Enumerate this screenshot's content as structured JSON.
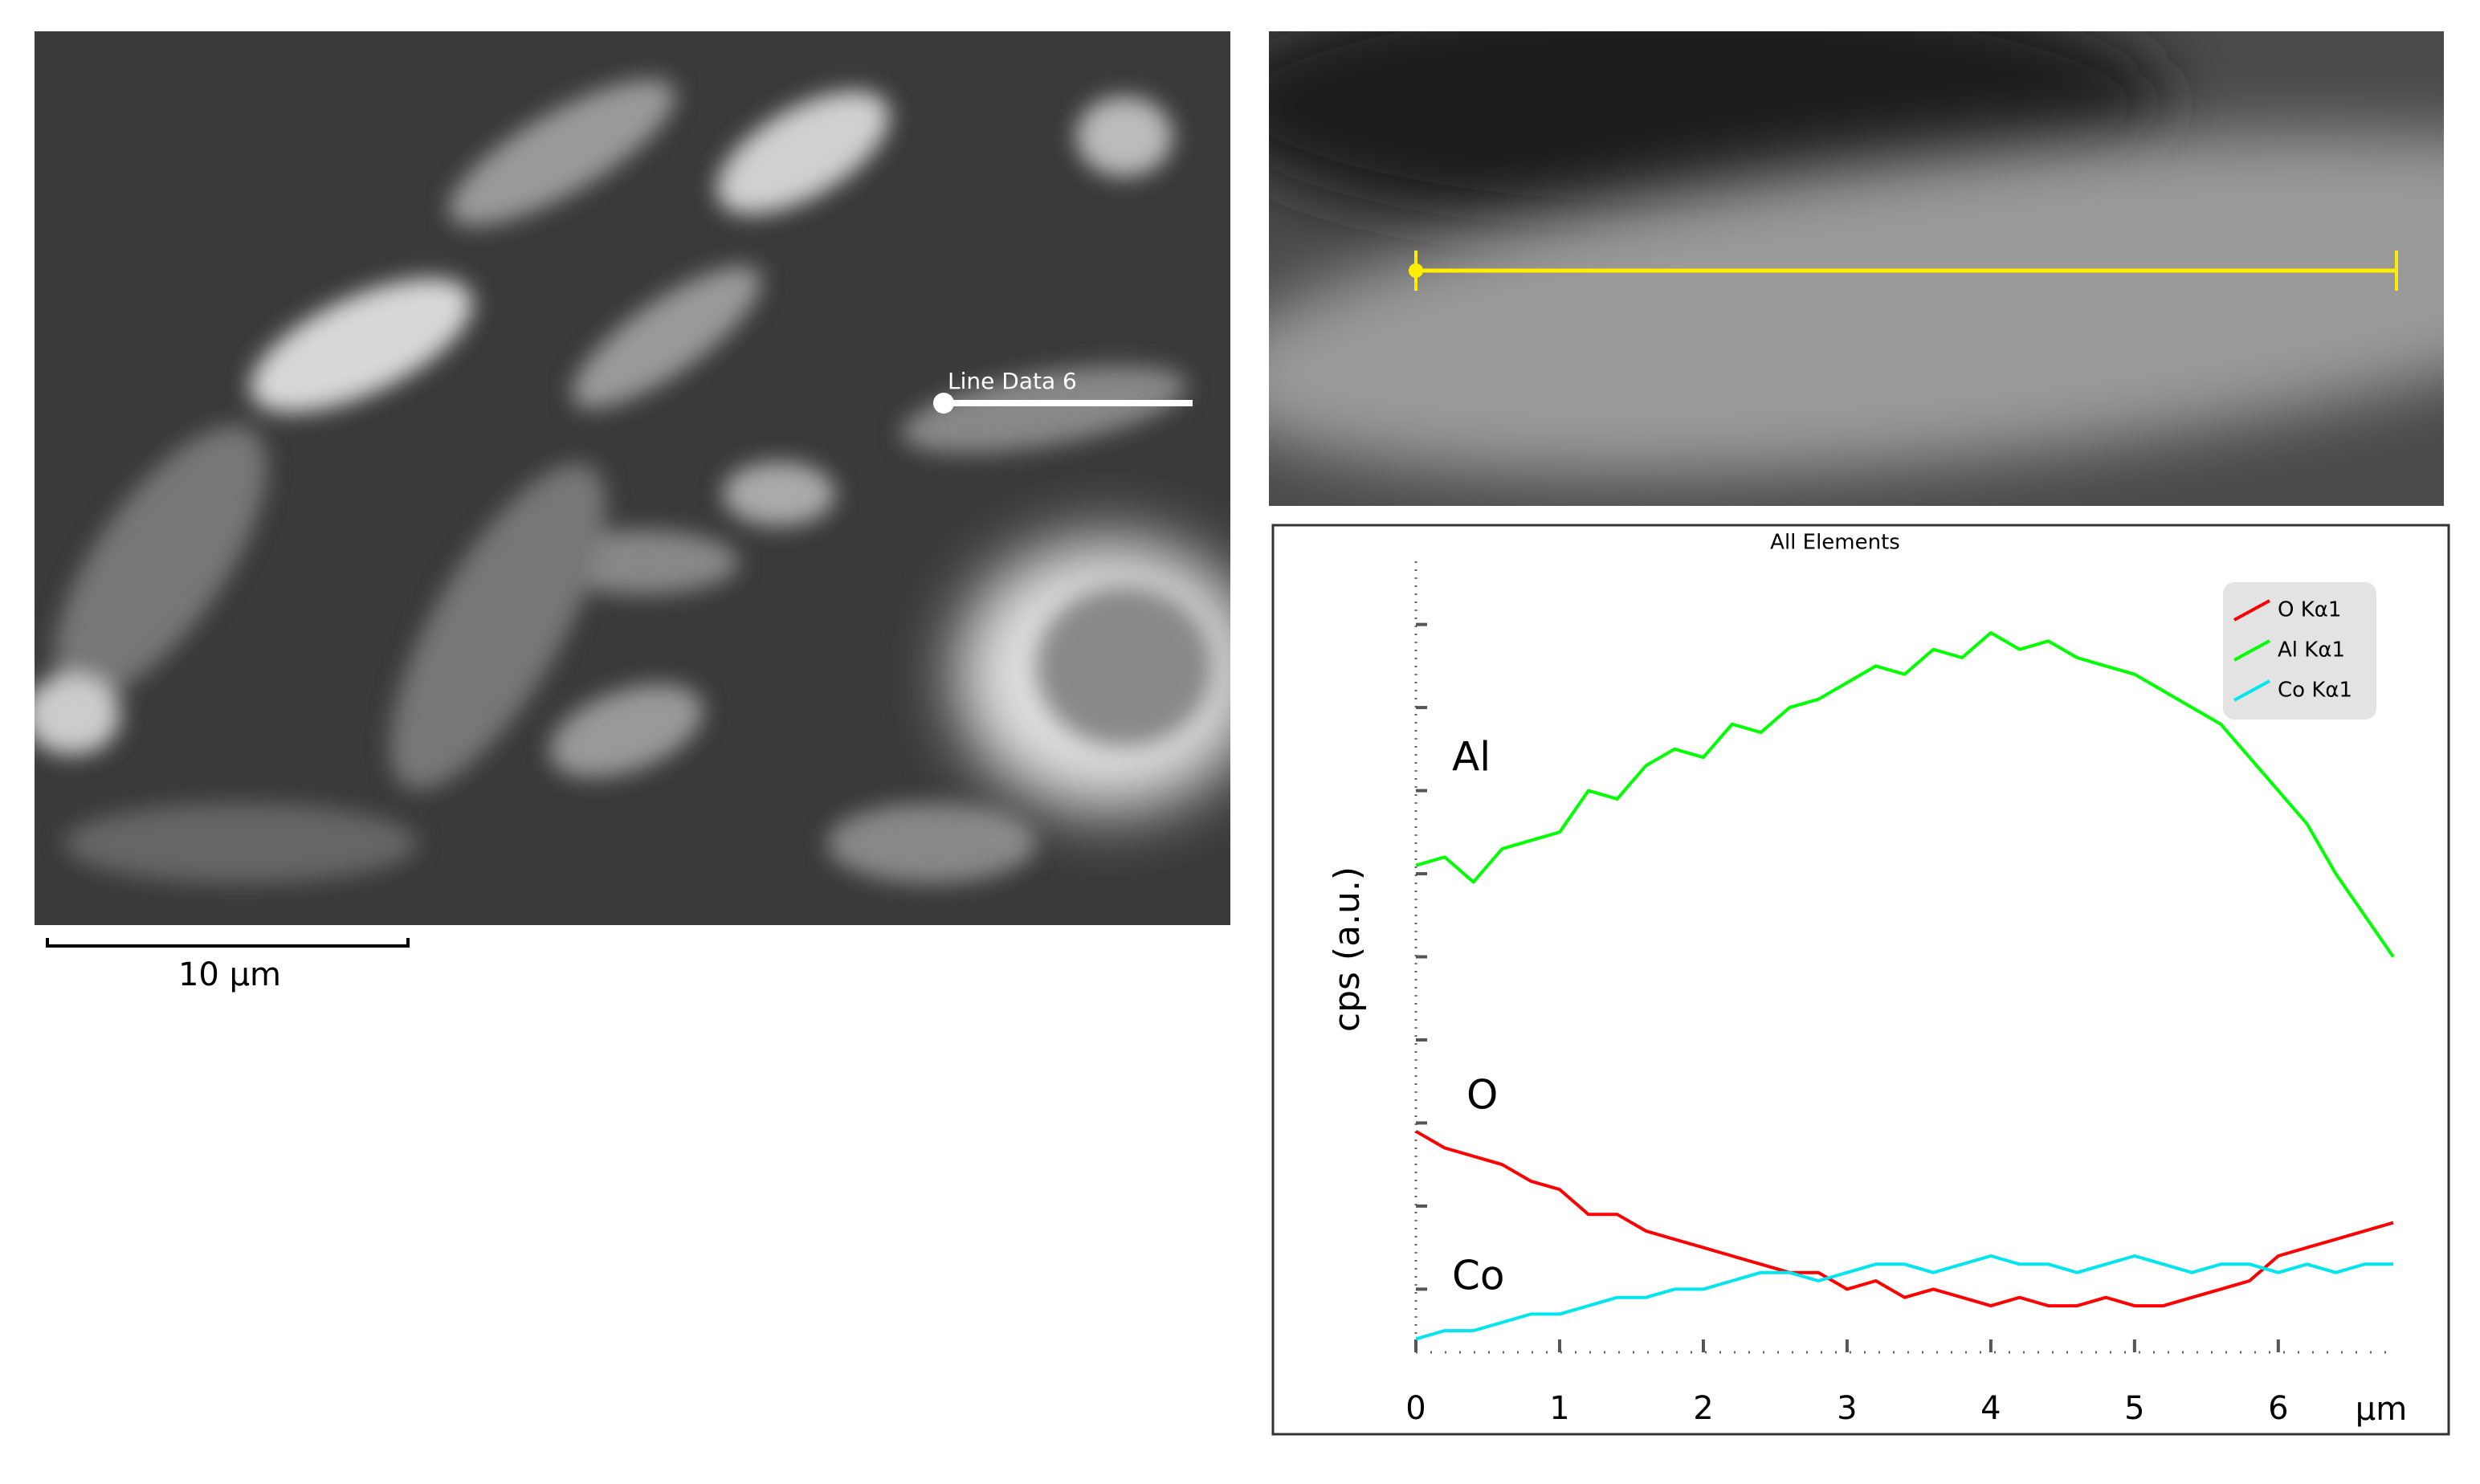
{
  "micrograph": {
    "line_label": "Line Data 6",
    "scale_bar": "10 µm"
  },
  "chart_data": {
    "type": "line",
    "title": "All Elements",
    "y_label": "cps (a.u.)",
    "x_label": "µm",
    "annotations": [
      "Al",
      "O",
      "Co"
    ],
    "x": [
      0,
      0.2,
      0.4,
      0.6,
      0.8,
      1,
      1.2,
      1.4,
      1.6,
      1.8,
      2,
      2.2,
      2.4,
      2.6,
      2.8,
      3,
      3.2,
      3.4,
      3.6,
      3.8,
      4,
      4.2,
      4.4,
      4.6,
      4.8,
      5,
      5.2,
      5.4,
      5.6,
      5.8,
      6,
      6.2,
      6.4,
      6.6,
      6.8
    ],
    "series": [
      {
        "name": "O Kα1",
        "color": "#ff0000",
        "values": [
          1.9,
          1.7,
          1.6,
          1.5,
          1.3,
          1.2,
          0.9,
          0.9,
          0.7,
          0.6,
          0.5,
          0.4,
          0.3,
          0.2,
          0.2,
          0.0,
          0.1,
          -0.1,
          0.0,
          -0.1,
          -0.2,
          -0.1,
          -0.2,
          -0.2,
          -0.1,
          -0.2,
          -0.2,
          -0.1,
          0.0,
          0.1,
          0.4,
          0.5,
          0.6,
          0.7,
          0.8
        ]
      },
      {
        "name": "Al Kα1",
        "color": "#00ff00",
        "values": [
          5.1,
          5.2,
          4.9,
          5.3,
          5.4,
          5.5,
          6.0,
          5.9,
          6.3,
          6.5,
          6.4,
          6.8,
          6.7,
          7.0,
          7.1,
          7.3,
          7.5,
          7.4,
          7.7,
          7.6,
          7.9,
          7.7,
          7.8,
          7.6,
          7.5,
          7.4,
          7.2,
          7.0,
          6.8,
          6.4,
          6.0,
          5.6,
          5.0,
          4.5,
          4.0
        ]
      },
      {
        "name": "Co Kα1",
        "color": "#00e5ee",
        "values": [
          -0.6,
          -0.5,
          -0.5,
          -0.4,
          -0.3,
          -0.3,
          -0.2,
          -0.1,
          -0.1,
          0.0,
          0.0,
          0.1,
          0.2,
          0.2,
          0.1,
          0.2,
          0.3,
          0.3,
          0.2,
          0.3,
          0.4,
          0.3,
          0.3,
          0.2,
          0.3,
          0.4,
          0.3,
          0.2,
          0.3,
          0.3,
          0.2,
          0.3,
          0.2,
          0.3,
          0.3
        ]
      }
    ],
    "xlim": [
      0,
      6.8
    ],
    "xticks": [
      0,
      1,
      2,
      3,
      4,
      5,
      6
    ],
    "ylim": [
      -0.76,
      8.76
    ],
    "yticks": [
      0,
      1,
      2,
      3,
      4,
      5,
      6,
      7,
      8
    ],
    "legend": "upper right"
  }
}
